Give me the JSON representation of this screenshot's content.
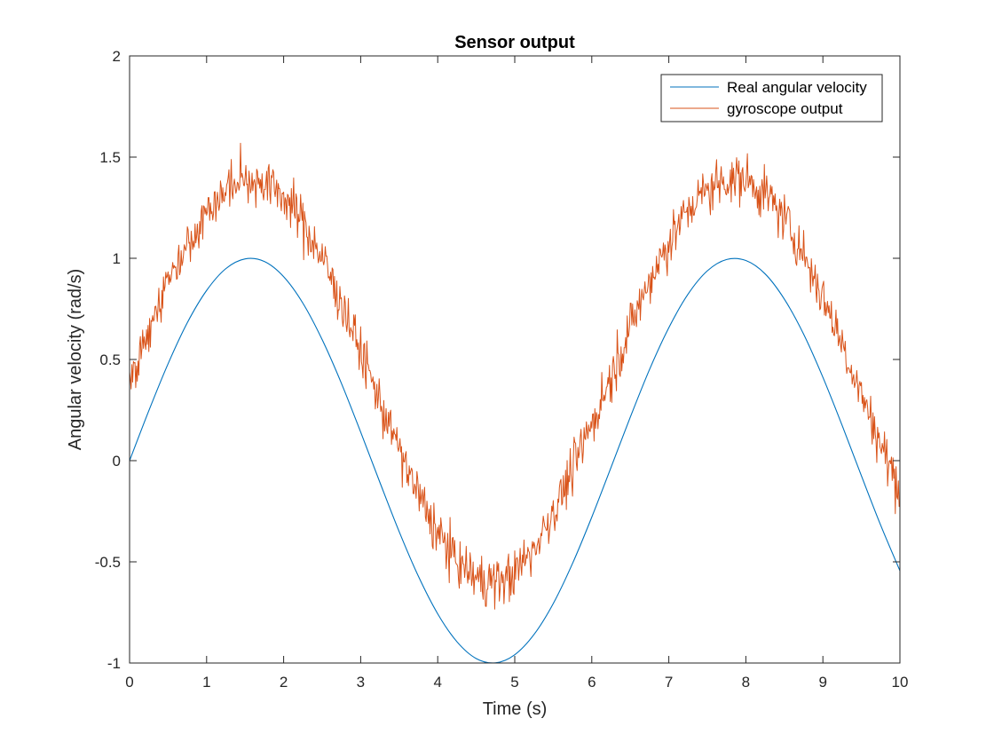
{
  "chart_data": {
    "type": "line",
    "title": "Sensor output",
    "xlabel": "Time (s)",
    "ylabel": "Angular velocity (rad/s)",
    "xlim": [
      0,
      10
    ],
    "ylim": [
      -1,
      2
    ],
    "xticks": [
      0,
      1,
      2,
      3,
      4,
      5,
      6,
      7,
      8,
      9,
      10
    ],
    "xtick_labels": [
      "0",
      "1",
      "2",
      "3",
      "4",
      "5",
      "6",
      "7",
      "8",
      "9",
      "10"
    ],
    "yticks": [
      -1,
      -0.5,
      0,
      0.5,
      1,
      1.5,
      2
    ],
    "ytick_labels": [
      "-1",
      "-0.5",
      "0",
      "0.5",
      "1",
      "1.5",
      "2"
    ],
    "grid": false,
    "legend_position": "top-right",
    "series": [
      {
        "name": "Real angular velocity",
        "color": "#0072BD",
        "x": [
          0.0,
          0.25,
          0.5,
          0.75,
          1.0,
          1.25,
          1.5,
          1.75,
          2.0,
          2.25,
          2.5,
          2.75,
          3.0,
          3.25,
          3.5,
          3.75,
          4.0,
          4.25,
          4.5,
          4.75,
          5.0,
          5.25,
          5.5,
          5.75,
          6.0,
          6.25,
          6.5,
          6.75,
          7.0,
          7.25,
          7.5,
          7.75,
          8.0,
          8.25,
          8.5,
          8.75,
          9.0,
          9.25,
          9.5,
          9.75,
          10.0
        ],
        "y": [
          0.0,
          0.247,
          0.479,
          0.682,
          0.841,
          0.949,
          0.997,
          0.984,
          0.909,
          0.778,
          0.598,
          0.382,
          0.141,
          -0.108,
          -0.351,
          -0.572,
          -0.757,
          -0.895,
          -0.978,
          -0.999,
          -0.959,
          -0.859,
          -0.706,
          -0.508,
          -0.279,
          -0.033,
          0.215,
          0.451,
          0.657,
          0.823,
          0.938,
          0.994,
          0.989,
          0.923,
          0.798,
          0.625,
          0.412,
          0.174,
          -0.075,
          -0.319,
          -0.544
        ]
      },
      {
        "name": "gyroscope output",
        "color": "#D95319",
        "x": [
          0.0,
          0.25,
          0.5,
          0.75,
          1.0,
          1.25,
          1.5,
          1.75,
          2.0,
          2.25,
          2.5,
          2.75,
          3.0,
          3.25,
          3.5,
          3.75,
          4.0,
          4.25,
          4.5,
          4.75,
          5.0,
          5.25,
          5.5,
          5.75,
          6.0,
          6.25,
          6.5,
          6.75,
          7.0,
          7.25,
          7.5,
          7.75,
          8.0,
          8.25,
          8.5,
          8.75,
          9.0,
          9.25,
          9.5,
          9.75,
          10.0
        ],
        "y": [
          0.4,
          0.66,
          0.89,
          1.08,
          1.23,
          1.34,
          1.39,
          1.38,
          1.31,
          1.18,
          1.0,
          0.78,
          0.54,
          0.29,
          0.05,
          -0.17,
          -0.36,
          -0.5,
          -0.58,
          -0.6,
          -0.56,
          -0.43,
          -0.25,
          -0.05,
          0.18,
          0.42,
          0.66,
          0.89,
          1.08,
          1.24,
          1.34,
          1.39,
          1.39,
          1.32,
          1.2,
          1.02,
          0.81,
          0.58,
          0.33,
          0.08,
          -0.14
        ]
      }
    ]
  }
}
